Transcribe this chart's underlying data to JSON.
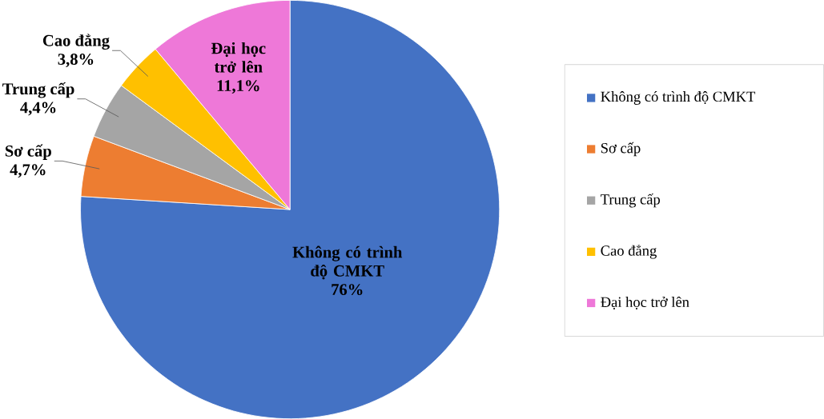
{
  "chart_data": {
    "type": "pie",
    "categories": [
      "Không có trình độ CMKT",
      "Sơ cấp",
      "Trung cấp",
      "Cao đẳng",
      "Đại học trở lên"
    ],
    "values": [
      76,
      4.7,
      4.4,
      3.8,
      11.1
    ],
    "value_labels": [
      "76%",
      "4,7%",
      "4,4%",
      "3,8%",
      "11,1%"
    ],
    "colors": [
      "#4472c4",
      "#ed7d31",
      "#a5a5a5",
      "#ffc000",
      "#ee78d8"
    ],
    "legend": "right"
  }
}
